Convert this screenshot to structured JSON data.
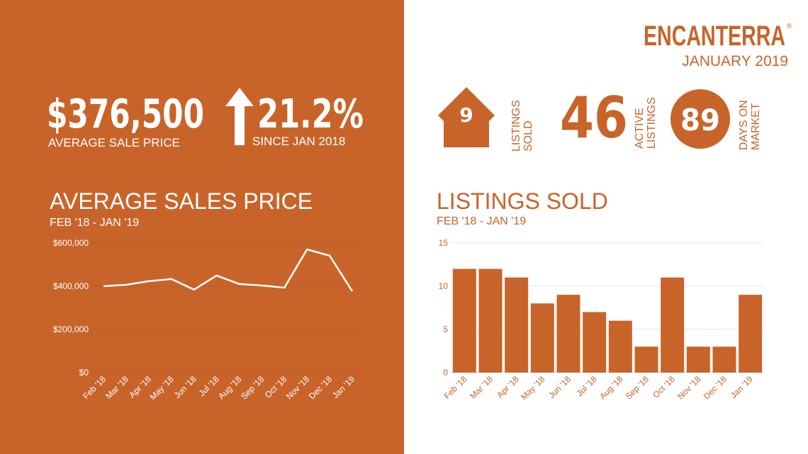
{
  "brand": "ENCANTERRA",
  "brand_mark": "®",
  "period": "JANUARY 2019",
  "average_price": "$376,500",
  "average_price_label": "AVERAGE  SALE PRICE",
  "change": "21.2%",
  "change_label": "SINCE JAN 2018",
  "listings_sold": "9",
  "listings_sold_label": [
    "LISTINGS",
    "SOLD"
  ],
  "active_listings": "46",
  "active_listings_label": [
    "ACTIVE",
    "LISTINGS"
  ],
  "days_on_market": "89",
  "days_on_market_label": [
    "DAYS ON",
    "MARKET"
  ],
  "chart_data": [
    {
      "type": "line",
      "title": "AVERAGE SALES PRICE",
      "subtitle": "FEB '18 - JAN '19",
      "categories": [
        "Feb '18",
        "Mar '18",
        "Apr '18",
        "May '18",
        "Jun '18",
        "Jul '18",
        "Aug '18",
        "Sep '18",
        "Oct '18",
        "Nov '18",
        "Dec '18",
        "Jan '19"
      ],
      "values": [
        400000,
        406000,
        423000,
        433000,
        384000,
        449000,
        410000,
        403000,
        393000,
        570000,
        541000,
        376500
      ],
      "color": "#ffffff",
      "grid": true,
      "ylim": [
        0,
        600000
      ],
      "yticks": [
        {
          "value": 0,
          "label": "$0"
        },
        {
          "value": 200000,
          "label": "$200,000"
        },
        {
          "value": 400000,
          "label": "$400,000"
        },
        {
          "value": 600000,
          "label": "$600,000"
        }
      ]
    },
    {
      "type": "bar",
      "title": "LISTINGS SOLD",
      "subtitle": "FEB '18 - JAN '19",
      "categories": [
        "Feb '18",
        "Mar '18",
        "Apr '18",
        "May '18",
        "Jun '18",
        "Jul '18",
        "Aug '18",
        "Sep '18",
        "Oct '18",
        "Nov '18",
        "Dec '18",
        "Jan '19"
      ],
      "values": [
        12,
        12,
        11,
        8,
        9,
        7,
        6,
        3,
        11,
        3,
        3,
        9
      ],
      "color": "#c8642a",
      "grid": true,
      "ylim": [
        0,
        15
      ],
      "yticks": [
        0,
        5,
        10,
        15
      ]
    }
  ]
}
